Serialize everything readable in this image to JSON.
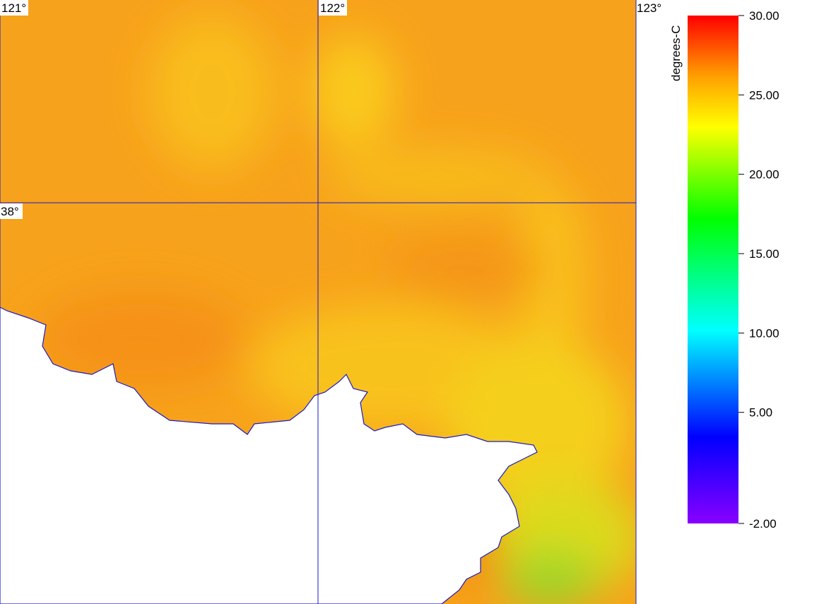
{
  "map": {
    "lon_labels": [
      "121°",
      "122°",
      "123°"
    ],
    "lat_labels": [
      "38°"
    ],
    "colorbar": {
      "label": "degrees-C",
      "lim": [
        -2,
        30
      ],
      "ticks": [
        {
          "value": 30,
          "label": "30.00"
        },
        {
          "value": 25,
          "label": "25.00"
        },
        {
          "value": 20,
          "label": "20.00"
        },
        {
          "value": 15,
          "label": "15.00"
        },
        {
          "value": 10,
          "label": "10.00"
        },
        {
          "value": 5,
          "label": "5.00"
        },
        {
          "value": -2,
          "label": "-2.00"
        }
      ]
    }
  }
}
